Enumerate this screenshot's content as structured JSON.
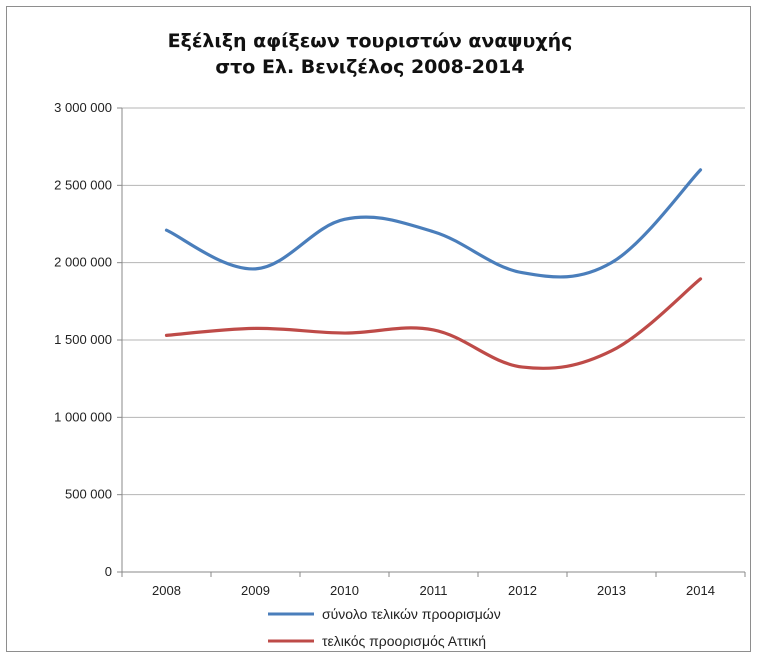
{
  "chart_data": {
    "type": "line",
    "title": [
      "Εξέλιξη αφίξεων τουριστών αναψυχής",
      "στο Ελ. Βενιζέλος 2008-2014"
    ],
    "categories": [
      "2008",
      "2009",
      "2010",
      "2011",
      "2012",
      "2013",
      "2014"
    ],
    "ylim": [
      0,
      3000000
    ],
    "yticks": [
      0,
      500000,
      1000000,
      1500000,
      2000000,
      2500000,
      3000000
    ],
    "ytick_labels": [
      "0",
      "500 000",
      "1 000 000",
      "1 500 000",
      "2 000 000",
      "2 500 000",
      "3 000 000"
    ],
    "grid": true,
    "legend_position": "bottom",
    "series": [
      {
        "name": "σύνολο τελικών προορισμών",
        "color": "#4a7ebb",
        "values": [
          2210000,
          1960000,
          2280000,
          2200000,
          1935000,
          2000000,
          2600000
        ]
      },
      {
        "name": "τελικός προορισμός Αττική",
        "color": "#be4b48",
        "values": [
          1530000,
          1575000,
          1545000,
          1565000,
          1325000,
          1430000,
          1895000
        ]
      }
    ]
  }
}
